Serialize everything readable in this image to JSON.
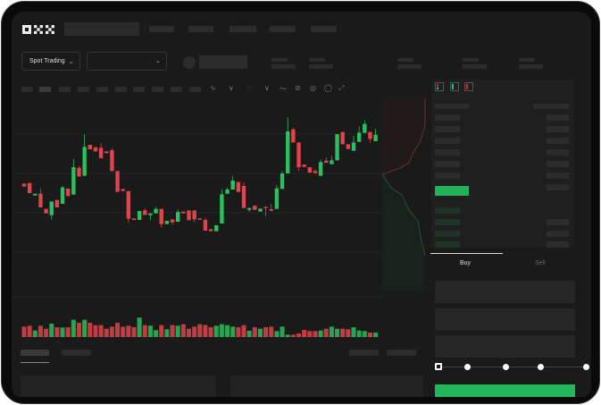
{
  "header": {
    "logo_text": "OKX"
  },
  "toolbar": {
    "market_select_label": "Spot Trading",
    "pair_select_value": ""
  },
  "order_form": {
    "tabs": [
      {
        "label": "Buy",
        "active": true
      },
      {
        "label": "Sell",
        "active": false
      }
    ],
    "leverage_slider_level": 0,
    "submit_color": "#21b75a"
  },
  "colors": {
    "up": "#2ebd5f",
    "down": "#e0434a",
    "background": "#1a1a1a"
  },
  "icons": [
    "okx-logo",
    "chevron-down-icon",
    "orderbook-both-icon",
    "orderbook-bids-icon",
    "orderbook-asks-icon",
    "indicator-icon",
    "drawing-icon",
    "settings-icon",
    "fullscreen-icon"
  ],
  "chart_data": {
    "type": "candlestick",
    "candles": [
      [
        200,
        190,
        200,
        190
      ],
      [
        202,
        168,
        202,
        168
      ],
      [
        160,
        166,
        166,
        160
      ],
      [
        166,
        120,
        185,
        120
      ],
      [
        115,
        100,
        115,
        100
      ],
      [
        94,
        140,
        140,
        80
      ],
      [
        145,
        120,
        145,
        120
      ],
      [
        132,
        187,
        192,
        132
      ],
      [
        183,
        158,
        183,
        158
      ],
      [
        163,
        255,
        282,
        163
      ],
      [
        253,
        224,
        260,
        224
      ],
      [
        226,
        323,
        365,
        226
      ],
      [
        330,
        315,
        330,
        315
      ],
      [
        322,
        308,
        322,
        308
      ],
      [
        320,
        285,
        335,
        285
      ],
      [
        308,
        302,
        308,
        302
      ],
      [
        312,
        242,
        320,
        242
      ],
      [
        242,
        172,
        242,
        172
      ],
      [
        182,
        175,
        182,
        175
      ],
      [
        175,
        82,
        175,
        68
      ],
      [
        83,
        78,
        83,
        78
      ],
      [
        78,
        108,
        108,
        78
      ],
      [
        110,
        95,
        117,
        95
      ],
      [
        94,
        100,
        100,
        78
      ],
      [
        100,
        115,
        122,
        100
      ],
      [
        115,
        64,
        115,
        52
      ],
      [
        64,
        75,
        75,
        64
      ],
      [
        80,
        70,
        80,
        62
      ],
      [
        72,
        105,
        113,
        72
      ],
      [
        106,
        100,
        106,
        100
      ],
      [
        110,
        77,
        110,
        77
      ],
      [
        110,
        80,
        110,
        70
      ],
      [
        83,
        79,
        83,
        79
      ],
      [
        78,
        42,
        85,
        42
      ],
      [
        47,
        40,
        47,
        40
      ],
      [
        40,
        60,
        60,
        40
      ],
      [
        66,
        164,
        180,
        66
      ],
      [
        166,
        180,
        186,
        166
      ],
      [
        180,
        210,
        225,
        180
      ],
      [
        205,
        172,
        205,
        172
      ],
      [
        192,
        118,
        205,
        118
      ],
      [
        112,
        118,
        118,
        105
      ],
      [
        126,
        112,
        126,
        112
      ],
      [
        106,
        116,
        116,
        106
      ],
      [
        122,
        118,
        122,
        90
      ],
      [
        114,
        109,
        132,
        109
      ],
      [
        115,
        184,
        195,
        115
      ],
      [
        182,
        234,
        242,
        182
      ],
      [
        234,
        375,
        423,
        234
      ],
      [
        382,
        338,
        386,
        338
      ],
      [
        338,
        255,
        338,
        242
      ],
      [
        264,
        256,
        264,
        256
      ],
      [
        255,
        237,
        255,
        237
      ],
      [
        242,
        235,
        248,
        235
      ],
      [
        226,
        272,
        280,
        226
      ],
      [
        277,
        270,
        288,
        270
      ],
      [
        265,
        278,
        292,
        265
      ],
      [
        278,
        366,
        366,
        278
      ],
      [
        373,
        332,
        373,
        332
      ],
      [
        332,
        316,
        332,
        316
      ],
      [
        310,
        338,
        360,
        310
      ],
      [
        340,
        371,
        392,
        340
      ],
      [
        370,
        400,
        413,
        370
      ],
      [
        373,
        350,
        373,
        338
      ],
      [
        342,
        364,
        384,
        342
      ]
    ],
    "volumes": [
      35,
      38,
      22,
      38,
      28,
      45,
      33,
      32,
      33,
      58,
      48,
      58,
      48,
      40,
      40,
      28,
      35,
      48,
      35,
      38,
      33,
      65,
      40,
      38,
      23,
      40,
      26,
      40,
      38,
      43,
      28,
      35,
      43,
      40,
      33,
      38,
      43,
      40,
      35,
      33,
      40,
      21,
      33,
      28,
      33,
      35,
      20,
      35,
      8,
      8,
      12,
      24,
      20,
      20,
      22,
      28,
      35,
      28,
      28,
      26,
      33,
      22,
      20,
      15,
      15
    ]
  }
}
